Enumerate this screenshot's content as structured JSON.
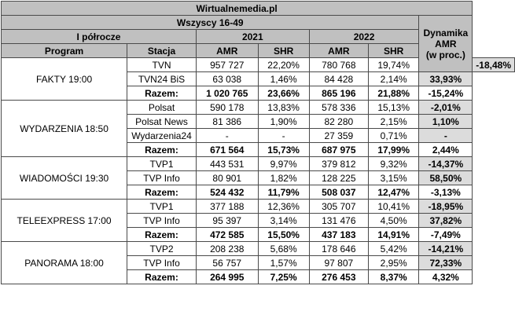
{
  "title": "Wirtualnemedia.pl",
  "subtitle": "Wszyscy 16-49",
  "period_label": "I półrocze",
  "year_2021": "2021",
  "year_2022": "2022",
  "dynamika_line1": "Dynamika",
  "dynamika_line2": "AMR",
  "dynamika_line3": "(w proc.)",
  "col_program": "Program",
  "col_stacja": "Stacja",
  "col_amr": "AMR",
  "col_shr": "SHR",
  "groups": [
    {
      "program": "FAKTY 19:00",
      "rows": [
        {
          "stacja": "TVN",
          "amr2021": "957 727",
          "shr2021": "22,20%",
          "amr2022": "780 768",
          "shr2022": "19,74%",
          "dyn": "-18,48%"
        },
        {
          "stacja": "TVN24 BiS",
          "amr2021": "63 038",
          "shr2021": "1,46%",
          "amr2022": "84 428",
          "shr2022": "2,14%",
          "dyn": "33,93%"
        },
        {
          "stacja": "Razem:",
          "amr2021": "1 020 765",
          "shr2021": "23,66%",
          "amr2022": "865 196",
          "shr2022": "21,88%",
          "dyn": "-15,24%"
        }
      ]
    },
    {
      "program": "WYDARZENIA 18:50",
      "rows": [
        {
          "stacja": "Polsat",
          "amr2021": "590 178",
          "shr2021": "13,83%",
          "amr2022": "578 336",
          "shr2022": "15,13%",
          "dyn": "-2,01%"
        },
        {
          "stacja": "Polsat News",
          "amr2021": "81 386",
          "shr2021": "1,90%",
          "amr2022": "82 280",
          "shr2022": "2,15%",
          "dyn": "1,10%"
        },
        {
          "stacja": "Wydarzenia24",
          "amr2021": "-",
          "shr2021": "-",
          "amr2022": "27 359",
          "shr2022": "0,71%",
          "dyn": "-"
        },
        {
          "stacja": "Razem:",
          "amr2021": "671 564",
          "shr2021": "15,73%",
          "amr2022": "687 975",
          "shr2022": "17,99%",
          "dyn": "2,44%"
        }
      ]
    },
    {
      "program": "WIADOMOŚCI 19:30",
      "rows": [
        {
          "stacja": "TVP1",
          "amr2021": "443 531",
          "shr2021": "9,97%",
          "amr2022": "379 812",
          "shr2022": "9,32%",
          "dyn": "-14,37%"
        },
        {
          "stacja": "TVP Info",
          "amr2021": "80 901",
          "shr2021": "1,82%",
          "amr2022": "128 225",
          "shr2022": "3,15%",
          "dyn": "58,50%"
        },
        {
          "stacja": "Razem:",
          "amr2021": "524 432",
          "shr2021": "11,79%",
          "amr2022": "508 037",
          "shr2022": "12,47%",
          "dyn": "-3,13%"
        }
      ]
    },
    {
      "program": "TELEEXPRESS 17:00",
      "rows": [
        {
          "stacja": "TVP1",
          "amr2021": "377 188",
          "shr2021": "12,36%",
          "amr2022": "305 707",
          "shr2022": "10,41%",
          "dyn": "-18,95%"
        },
        {
          "stacja": "TVP Info",
          "amr2021": "95 397",
          "shr2021": "3,14%",
          "amr2022": "131 476",
          "shr2022": "4,50%",
          "dyn": "37,82%"
        },
        {
          "stacja": "Razem:",
          "amr2021": "472 585",
          "shr2021": "15,50%",
          "amr2022": "437 183",
          "shr2022": "14,91%",
          "dyn": "-7,49%"
        }
      ]
    },
    {
      "program": "PANORAMA 18:00",
      "rows": [
        {
          "stacja": "TVP2",
          "amr2021": "208 238",
          "shr2021": "5,68%",
          "amr2022": "178 646",
          "shr2022": "5,42%",
          "dyn": "-14,21%"
        },
        {
          "stacja": "TVP Info",
          "amr2021": "56 757",
          "shr2021": "1,57%",
          "amr2022": "97 807",
          "shr2022": "2,95%",
          "dyn": "72,33%"
        },
        {
          "stacja": "Razem:",
          "amr2021": "264 995",
          "shr2021": "7,25%",
          "amr2022": "276 453",
          "shr2022": "8,37%",
          "dyn": "4,32%"
        }
      ]
    }
  ]
}
